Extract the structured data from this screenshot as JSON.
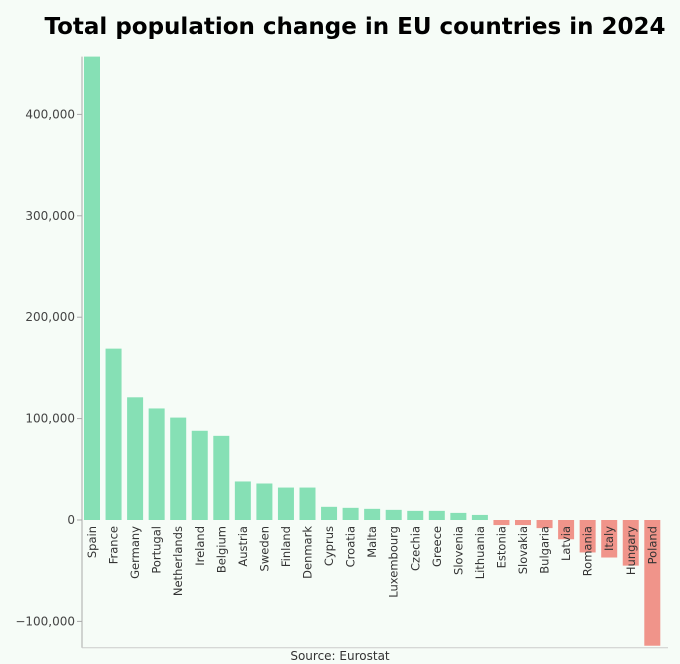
{
  "chart_data": {
    "type": "bar",
    "title": "Total population change in EU countries in 2024",
    "source": "Source: Eurostat",
    "categories": [
      "Spain",
      "France",
      "Germany",
      "Portugal",
      "Netherlands",
      "Ireland",
      "Belgium",
      "Austria",
      "Sweden",
      "Finland",
      "Denmark",
      "Cyprus",
      "Croatia",
      "Malta",
      "Luxembourg",
      "Czechia",
      "Greece",
      "Slovenia",
      "Lithuania",
      "Estonia",
      "Slovakia",
      "Bulgaria",
      "Latvia",
      "Romania",
      "Italy",
      "Hungary",
      "Poland"
    ],
    "values": [
      457000,
      169000,
      121000,
      110000,
      101000,
      88000,
      83000,
      38000,
      36000,
      32000,
      32000,
      13000,
      12000,
      11000,
      10000,
      9000,
      9000,
      7000,
      5000,
      -5000,
      -5000,
      -8000,
      -19000,
      -32000,
      -37000,
      -45000,
      -124000
    ],
    "ylim": [
      -124000,
      457000
    ],
    "yticks": [
      -100000,
      0,
      100000,
      200000,
      300000,
      400000
    ],
    "ytick_labels": [
      "−100,000",
      "0",
      "100,000",
      "200,000",
      "300,000",
      "400,000"
    ],
    "grid": false,
    "colors": {
      "positive": "#86e0b5",
      "negative": "#f0948a",
      "axis": "#aaaaaa"
    }
  }
}
